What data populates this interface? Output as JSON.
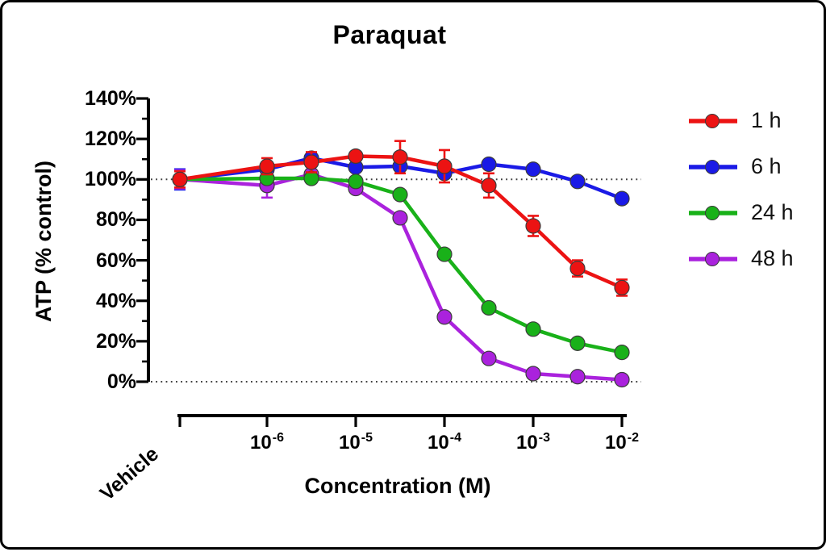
{
  "title": "Paraquat",
  "x_axis": {
    "label": "Concentration (M)",
    "vehicle_label": "Vehicle",
    "tick_labels": [
      {
        "base": "10",
        "exp": "-6"
      },
      {
        "base": "10",
        "exp": "-5"
      },
      {
        "base": "10",
        "exp": "-4"
      },
      {
        "base": "10",
        "exp": "-3"
      },
      {
        "base": "10",
        "exp": "-2"
      }
    ]
  },
  "y_axis": {
    "label": "ATP (% control)",
    "tick_labels": [
      "0%",
      "20%",
      "40%",
      "60%",
      "80%",
      "100%",
      "120%",
      "140%"
    ]
  },
  "legend": {
    "items": [
      {
        "label": "1 h",
        "color": "#ec1313"
      },
      {
        "label": "6 h",
        "color": "#1a1ae6"
      },
      {
        "label": "24 h",
        "color": "#19b119"
      },
      {
        "label": "48 h",
        "color": "#aa22dd"
      }
    ]
  },
  "chart_data": {
    "type": "line",
    "title": "Paraquat",
    "xlabel": "Concentration (M)",
    "ylabel": "ATP (% control)",
    "x_scale": "log, half-decade spacing, Vehicle control at left",
    "categories": [
      "Vehicle",
      "1e-06",
      "3.16e-06",
      "1e-05",
      "3.16e-05",
      "1e-04",
      "3.16e-04",
      "1e-03",
      "3.16e-03",
      "1e-02"
    ],
    "ylim_pct": [
      0,
      140
    ],
    "y_major_ticks_pct": [
      0,
      20,
      40,
      60,
      80,
      100,
      120,
      140
    ],
    "y_minor_ticks_pct": [
      10,
      30,
      50,
      70,
      90,
      110,
      130
    ],
    "reference_dotted_lines_pct": [
      100,
      0
    ],
    "legend_position": "right",
    "series": [
      {
        "name": "1 h",
        "color": "#ec1313",
        "values": [
          100,
          106.5,
          108.5,
          111.5,
          111,
          106.5,
          97,
          77,
          56,
          46.5
        ],
        "errors": [
          4,
          4,
          5,
          0,
          8,
          8,
          6,
          5,
          4,
          4
        ]
      },
      {
        "name": "6 h",
        "color": "#1a1ae6",
        "values": [
          100,
          105,
          110.5,
          106,
          106.5,
          103,
          107.5,
          105,
          99,
          90.5
        ],
        "errors": [
          5,
          0,
          0,
          0,
          0,
          0,
          0,
          0,
          0,
          0
        ]
      },
      {
        "name": "24 h",
        "color": "#19b119",
        "values": [
          100,
          100.5,
          100.5,
          99,
          92.5,
          63,
          36.5,
          26,
          19,
          14.5
        ],
        "errors": [
          0,
          0,
          0,
          0,
          0,
          0,
          0,
          0,
          0,
          0
        ]
      },
      {
        "name": "48 h",
        "color": "#aa22dd",
        "values": [
          100,
          97,
          102.5,
          95.5,
          81,
          32,
          11.5,
          4,
          2.5,
          1
        ],
        "errors": [
          4.5,
          6,
          0,
          0,
          0,
          0,
          0,
          0,
          0,
          0
        ]
      }
    ],
    "draw_order": [
      1,
      3,
      2,
      0
    ]
  }
}
